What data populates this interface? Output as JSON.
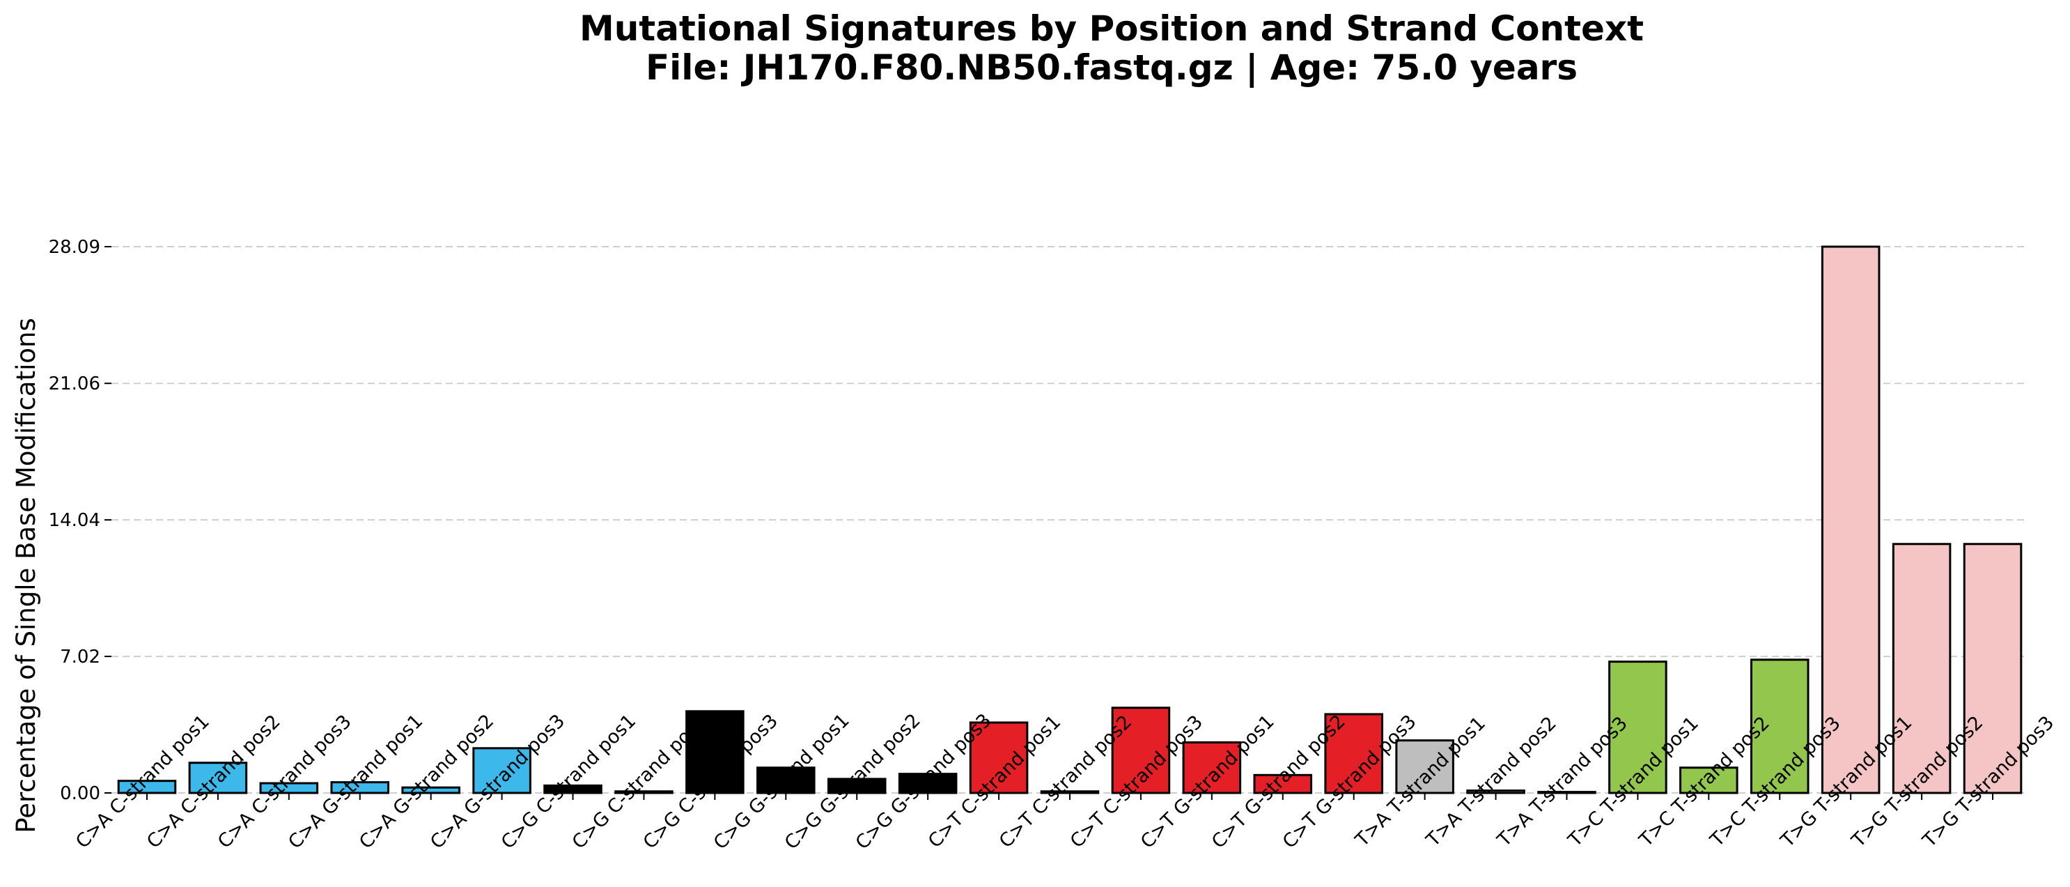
{
  "chart_data": {
    "type": "bar",
    "title": "Mutational Signatures by Position and Strand Context",
    "subtitle": "File: JH170.F80.NB50.fastq.gz | Age: 75.0 years",
    "xlabel": "",
    "ylabel": "Percentage of Single Base Modifications",
    "ylim": [
      0,
      28.09
    ],
    "yticks": [
      "0.00",
      "7.02",
      "14.04",
      "21.06",
      "28.09"
    ],
    "ytick_values": [
      0,
      7.02,
      14.04,
      21.06,
      28.09
    ],
    "grid": "y-dashed",
    "categories": [
      "C>A C-strand pos1",
      "C>A C-strand pos2",
      "C>A C-strand pos3",
      "C>A G-strand pos1",
      "C>A G-strand pos2",
      "C>A G-strand pos3",
      "C>G C-strand pos1",
      "C>G C-strand pos2",
      "C>G C-strand pos3",
      "C>G G-strand pos1",
      "C>G G-strand pos2",
      "C>G G-strand pos3",
      "C>T C-strand pos1",
      "C>T C-strand pos2",
      "C>T C-strand pos3",
      "C>T G-strand pos1",
      "C>T G-strand pos2",
      "C>T G-strand pos3",
      "T>A T-strand pos1",
      "T>A T-strand pos2",
      "T>A T-strand pos3",
      "T>C T-strand pos1",
      "T>C T-strand pos2",
      "T>C T-strand pos3",
      "T>G T-strand pos1",
      "T>G T-strand pos2",
      "T>G T-strand pos3"
    ],
    "values": [
      0.62,
      1.55,
      0.5,
      0.55,
      0.28,
      2.3,
      0.38,
      0.08,
      4.2,
      1.3,
      0.72,
      0.98,
      3.62,
      0.08,
      4.38,
      2.6,
      0.92,
      4.05,
      2.7,
      0.12,
      0.05,
      6.75,
      1.3,
      6.85,
      28.09,
      12.8,
      12.8
    ],
    "colors": [
      "#3cb9ea",
      "#3cb9ea",
      "#3cb9ea",
      "#3cb9ea",
      "#3cb9ea",
      "#3cb9ea",
      "#000000",
      "#000000",
      "#000000",
      "#000000",
      "#000000",
      "#000000",
      "#e41f26",
      "#e41f26",
      "#e41f26",
      "#e41f26",
      "#e41f26",
      "#e41f26",
      "#bebebe",
      "#bebebe",
      "#bebebe",
      "#92c64d",
      "#92c64d",
      "#92c64d",
      "#f5c4c5",
      "#f5c4c5",
      "#f5c4c5"
    ]
  }
}
